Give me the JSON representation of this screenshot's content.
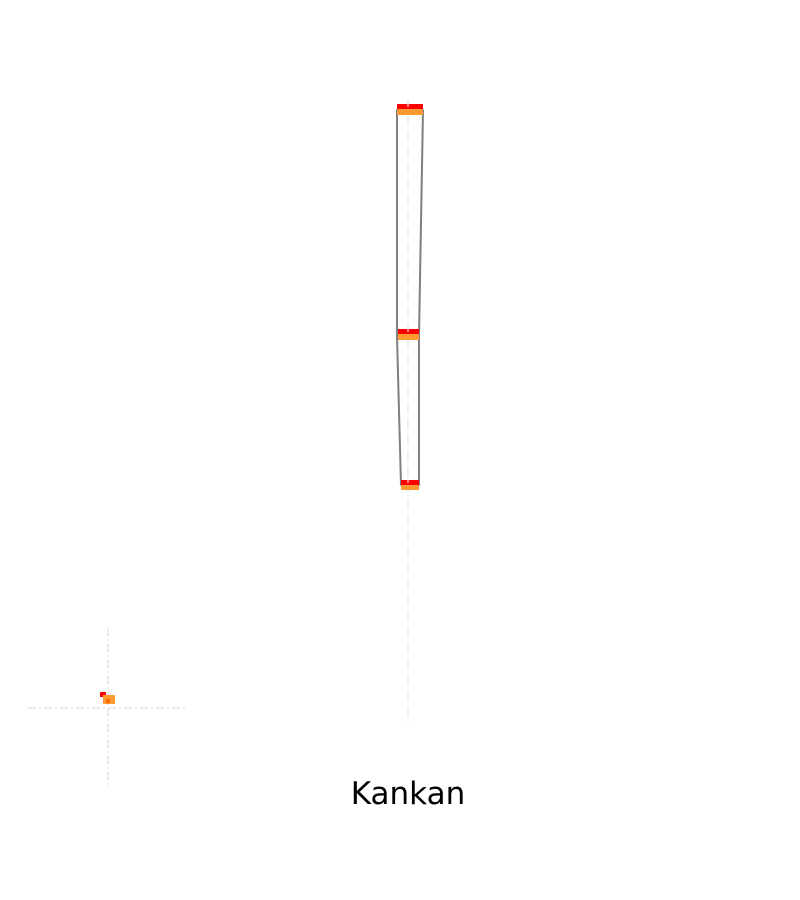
{
  "caption": "Kankan",
  "colors": {
    "background": "#ffffff",
    "outline": "#808080",
    "marker_top": "#ff0000",
    "marker_bottom": "#ff9a33",
    "guide": "#d9d9d9"
  }
}
